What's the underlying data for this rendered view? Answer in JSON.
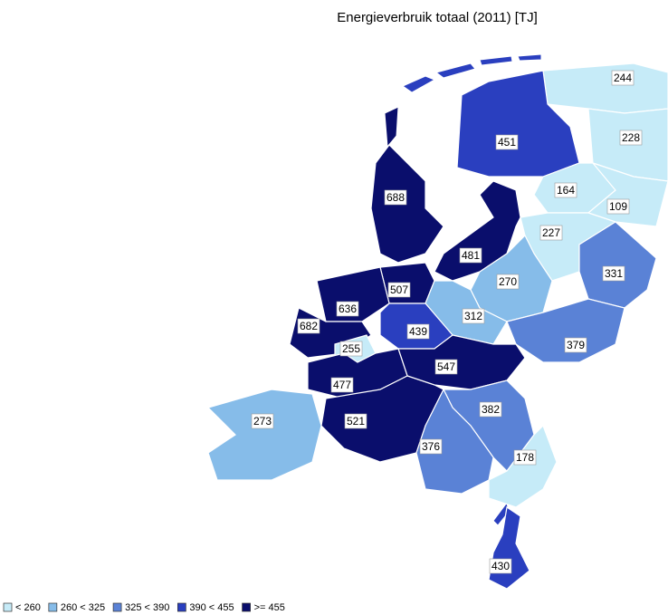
{
  "title": "Energieverbruik totaal (2011) [TJ]",
  "legend": [
    {
      "label": "< 260",
      "color": "#c6ebf8"
    },
    {
      "label": "260 < 325",
      "color": "#86bce9"
    },
    {
      "label": "325 < 390",
      "color": "#5a82d6"
    },
    {
      "label": "390 < 455",
      "color": "#2a3fbf"
    },
    {
      "label": ">= 455",
      "color": "#0a0e6c"
    }
  ],
  "regions": [
    {
      "value": 244,
      "color": "#c6ebf8"
    },
    {
      "value": 228,
      "color": "#c6ebf8"
    },
    {
      "value": 451,
      "color": "#2a3fbf"
    },
    {
      "value": 164,
      "color": "#c6ebf8"
    },
    {
      "value": 109,
      "color": "#c6ebf8"
    },
    {
      "value": 688,
      "color": "#0a0e6c"
    },
    {
      "value": 227,
      "color": "#c6ebf8"
    },
    {
      "value": 481,
      "color": "#0a0e6c"
    },
    {
      "value": 270,
      "color": "#86bce9"
    },
    {
      "value": 331,
      "color": "#5a82d6"
    },
    {
      "value": 507,
      "color": "#0a0e6c"
    },
    {
      "value": 636,
      "color": "#0a0e6c"
    },
    {
      "value": 312,
      "color": "#86bce9"
    },
    {
      "value": 682,
      "color": "#0a0e6c"
    },
    {
      "value": 439,
      "color": "#2a3fbf"
    },
    {
      "value": 255,
      "color": "#c6ebf8"
    },
    {
      "value": 379,
      "color": "#5a82d6"
    },
    {
      "value": 547,
      "color": "#0a0e6c"
    },
    {
      "value": 477,
      "color": "#0a0e6c"
    },
    {
      "value": 382,
      "color": "#5a82d6"
    },
    {
      "value": 521,
      "color": "#0a0e6c"
    },
    {
      "value": 273,
      "color": "#86bce9"
    },
    {
      "value": 376,
      "color": "#5a82d6"
    },
    {
      "value": 178,
      "color": "#c6ebf8"
    },
    {
      "value": 430,
      "color": "#2a3fbf"
    }
  ]
}
